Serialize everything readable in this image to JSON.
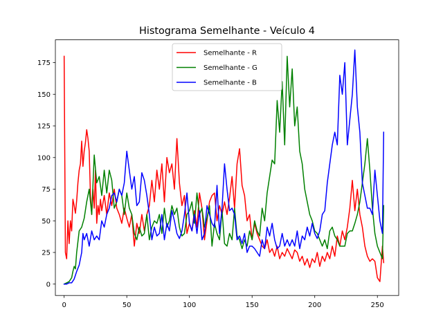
{
  "chart_data": {
    "type": "line",
    "title": "Histograma Semelhante - Veículo 4",
    "xlabel": "",
    "ylabel": "",
    "xlim": [
      -7,
      267
    ],
    "ylim": [
      -9,
      193
    ],
    "xticks": [
      0,
      50,
      100,
      150,
      200,
      250
    ],
    "yticks": [
      0,
      25,
      50,
      75,
      100,
      125,
      150,
      175
    ],
    "grid": false,
    "legend_position": "upper center",
    "series": [
      {
        "name": "Semelhante - R",
        "color": "#ff0000",
        "x": [
          0,
          1,
          2,
          3,
          4,
          5,
          6,
          7,
          8,
          9,
          10,
          11,
          12,
          13,
          14,
          15,
          16,
          17,
          18,
          19,
          20,
          21,
          22,
          23,
          24,
          25,
          26,
          27,
          28,
          29,
          30,
          32,
          34,
          36,
          38,
          40,
          42,
          44,
          46,
          48,
          50,
          52,
          54,
          56,
          58,
          60,
          62,
          64,
          66,
          68,
          70,
          72,
          74,
          76,
          78,
          80,
          82,
          84,
          86,
          88,
          90,
          92,
          94,
          96,
          98,
          100,
          102,
          104,
          106,
          108,
          110,
          112,
          114,
          116,
          118,
          120,
          122,
          124,
          126,
          128,
          130,
          132,
          134,
          136,
          138,
          140,
          142,
          144,
          146,
          148,
          150,
          152,
          154,
          156,
          158,
          160,
          162,
          164,
          166,
          168,
          170,
          172,
          174,
          176,
          178,
          180,
          182,
          184,
          186,
          188,
          190,
          192,
          194,
          196,
          198,
          200,
          202,
          204,
          206,
          208,
          210,
          212,
          214,
          216,
          218,
          220,
          222,
          224,
          226,
          228,
          230,
          232,
          234,
          236,
          238,
          240,
          242,
          244,
          246,
          248,
          250,
          252,
          254,
          255
        ],
        "y": [
          180,
          25,
          20,
          50,
          32,
          50,
          42,
          67,
          62,
          56,
          66,
          80,
          90,
          95,
          113,
          93,
          105,
          112,
          122,
          115,
          105,
          70,
          55,
          75,
          60,
          90,
          48,
          62,
          55,
          67,
          58,
          70,
          55,
          72,
          62,
          75,
          60,
          55,
          48,
          60,
          52,
          45,
          55,
          30,
          48,
          40,
          55,
          42,
          55,
          62,
          82,
          65,
          90,
          75,
          95,
          65,
          100,
          88,
          95,
          75,
          115,
          80,
          62,
          70,
          40,
          48,
          42,
          58,
          45,
          72,
          60,
          35,
          50,
          65,
          70,
          72,
          50,
          62,
          55,
          65,
          55,
          68,
          85,
          60,
          95,
          107,
          78,
          70,
          50,
          55,
          35,
          48,
          40,
          35,
          30,
          28,
          35,
          25,
          28,
          22,
          30,
          20,
          25,
          22,
          28,
          24,
          20,
          27,
          25,
          18,
          22,
          15,
          20,
          13,
          20,
          17,
          25,
          14,
          22,
          18,
          25,
          20,
          30,
          22,
          38,
          30,
          42,
          35,
          45,
          60,
          82,
          58,
          75,
          55,
          45,
          30,
          22,
          18,
          20,
          18,
          5,
          2,
          30,
          17
        ]
      },
      {
        "name": "Semelhante - G",
        "color": "#008000",
        "x": [
          0,
          2,
          4,
          6,
          7,
          8,
          9,
          10,
          12,
          14,
          16,
          18,
          20,
          22,
          24,
          26,
          28,
          30,
          32,
          34,
          36,
          38,
          40,
          42,
          44,
          46,
          48,
          50,
          52,
          54,
          56,
          58,
          60,
          62,
          64,
          66,
          68,
          70,
          72,
          74,
          76,
          78,
          80,
          82,
          84,
          86,
          88,
          90,
          92,
          94,
          96,
          98,
          100,
          102,
          104,
          106,
          108,
          110,
          112,
          114,
          116,
          118,
          120,
          122,
          124,
          126,
          128,
          130,
          132,
          134,
          136,
          138,
          140,
          142,
          144,
          146,
          148,
          150,
          152,
          154,
          156,
          158,
          160,
          162,
          164,
          166,
          168,
          170,
          172,
          174,
          176,
          178,
          180,
          182,
          184,
          186,
          188,
          190,
          192,
          194,
          196,
          198,
          200,
          202,
          204,
          206,
          208,
          210,
          212,
          214,
          216,
          218,
          220,
          222,
          224,
          226,
          228,
          230,
          232,
          234,
          236,
          238,
          240,
          242,
          244,
          246,
          248,
          250,
          252,
          254,
          255
        ],
        "y": [
          0,
          1,
          2,
          5,
          10,
          14,
          12,
          25,
          42,
          45,
          52,
          65,
          75,
          55,
          102,
          80,
          85,
          70,
          90,
          72,
          90,
          82,
          60,
          65,
          75,
          70,
          55,
          72,
          60,
          55,
          40,
          35,
          45,
          38,
          40,
          55,
          35,
          45,
          50,
          48,
          55,
          40,
          60,
          45,
          50,
          62,
          55,
          60,
          45,
          38,
          40,
          55,
          58,
          65,
          48,
          72,
          55,
          60,
          45,
          52,
          62,
          30,
          48,
          40,
          35,
          58,
          32,
          30,
          40,
          35,
          60,
          38,
          35,
          28,
          35,
          30,
          42,
          35,
          50,
          42,
          38,
          60,
          50,
          72,
          85,
          98,
          95,
          145,
          120,
          160,
          110,
          180,
          140,
          170,
          125,
          140,
          105,
          95,
          75,
          65,
          55,
          50,
          42,
          40,
          35,
          30,
          35,
          28,
          42,
          45,
          38,
          35,
          30,
          30,
          30,
          40,
          42,
          42,
          48,
          55,
          65,
          80,
          95,
          115,
          90,
          60,
          40,
          30,
          25,
          20,
          62
        ]
      },
      {
        "name": "Semelhante - B",
        "color": "#0000ff",
        "x": [
          0,
          2,
          4,
          6,
          8,
          10,
          12,
          14,
          15,
          16,
          18,
          20,
          22,
          24,
          26,
          28,
          30,
          32,
          34,
          36,
          38,
          40,
          42,
          44,
          46,
          48,
          50,
          52,
          54,
          56,
          58,
          60,
          62,
          64,
          66,
          68,
          70,
          72,
          74,
          76,
          78,
          80,
          82,
          84,
          86,
          88,
          90,
          92,
          94,
          96,
          98,
          100,
          102,
          104,
          106,
          108,
          110,
          112,
          114,
          116,
          118,
          120,
          122,
          124,
          126,
          128,
          130,
          132,
          134,
          136,
          138,
          140,
          142,
          144,
          146,
          148,
          150,
          152,
          154,
          156,
          158,
          160,
          162,
          164,
          166,
          168,
          170,
          172,
          174,
          176,
          178,
          180,
          182,
          184,
          186,
          188,
          190,
          192,
          194,
          196,
          198,
          200,
          202,
          204,
          206,
          208,
          210,
          212,
          214,
          216,
          218,
          220,
          222,
          224,
          226,
          228,
          230,
          232,
          234,
          236,
          238,
          240,
          242,
          244,
          246,
          248,
          250,
          252,
          254,
          255
        ],
        "y": [
          0,
          0,
          1,
          1,
          4,
          10,
          15,
          25,
          40,
          35,
          40,
          30,
          42,
          35,
          38,
          35,
          50,
          45,
          55,
          60,
          70,
          72,
          65,
          75,
          70,
          80,
          105,
          90,
          75,
          85,
          62,
          65,
          88,
          82,
          70,
          55,
          35,
          45,
          38,
          40,
          55,
          35,
          48,
          42,
          58,
          50,
          40,
          36,
          42,
          55,
          72,
          48,
          42,
          55,
          40,
          58,
          35,
          40,
          62,
          55,
          48,
          45,
          78,
          40,
          60,
          95,
          75,
          58,
          60,
          55,
          35,
          38,
          32,
          40,
          25,
          30,
          30,
          28,
          25,
          22,
          35,
          28,
          45,
          38,
          48,
          35,
          28,
          30,
          40,
          30,
          35,
          30,
          35,
          30,
          42,
          28,
          38,
          35,
          45,
          38,
          48,
          40,
          36,
          42,
          55,
          58,
          80,
          95,
          110,
          120,
          110,
          165,
          150,
          175,
          110,
          130,
          150,
          185,
          140,
          120,
          80,
          70,
          60,
          60,
          55,
          90,
          70,
          50,
          40,
          120
        ]
      }
    ]
  }
}
